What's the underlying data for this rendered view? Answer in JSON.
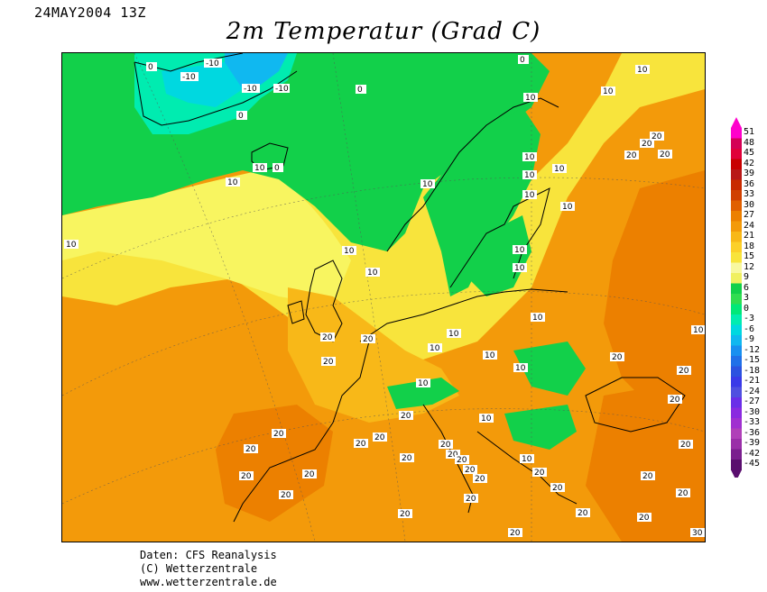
{
  "header": {
    "date": "24MAY2004 13Z",
    "title": "2m Temperatur (Grad C)"
  },
  "footer": {
    "line1": "Daten: CFS Reanalysis",
    "line2": "(C) Wetterzentrale",
    "line3": "www.wetterzentrale.de"
  },
  "legend": {
    "labels": [
      "51",
      "48",
      "45",
      "42",
      "39",
      "36",
      "33",
      "30",
      "27",
      "24",
      "21",
      "18",
      "15",
      "12",
      "9",
      "6",
      "3",
      "0",
      "-3",
      "-6",
      "-9",
      "-12",
      "-15",
      "-18",
      "-21",
      "-24",
      "-27",
      "-30",
      "-33",
      "-36",
      "-39",
      "-42",
      "-45"
    ],
    "colors": [
      "#ff00cc",
      "#d40055",
      "#e0003a",
      "#c80000",
      "#b81818",
      "#c82a00",
      "#d04000",
      "#e06000",
      "#ec8000",
      "#f39a0a",
      "#f8b818",
      "#fcd02a",
      "#f8e43c",
      "#f8f8a0",
      "#f0f060",
      "#12d04a",
      "#30dd50",
      "#00e878",
      "#00ecb0",
      "#00d8e0",
      "#10b8f0",
      "#1890f0",
      "#2070e8",
      "#2c52e0",
      "#3a3ae8",
      "#5050e0",
      "#6a2ee8",
      "#8a2ae0",
      "#a030d0",
      "#b040b8",
      "#9a2ea8",
      "#7a1e8e",
      "#5a0e6e"
    ]
  },
  "chart_data": {
    "type": "heatmap",
    "title": "2m Temperatur (Grad C)",
    "valid_time": "24MAY2004 13Z",
    "units": "Grad C",
    "isotherm_labels": [
      {
        "value": 0,
        "count": 8
      },
      {
        "value": -10,
        "count": 4
      },
      {
        "value": 10,
        "count": 30
      },
      {
        "value": 20,
        "count": 40
      },
      {
        "value": 30,
        "count": 1
      }
    ],
    "color_scale_min": -45,
    "color_scale_max": 51,
    "color_scale_step": 3
  }
}
